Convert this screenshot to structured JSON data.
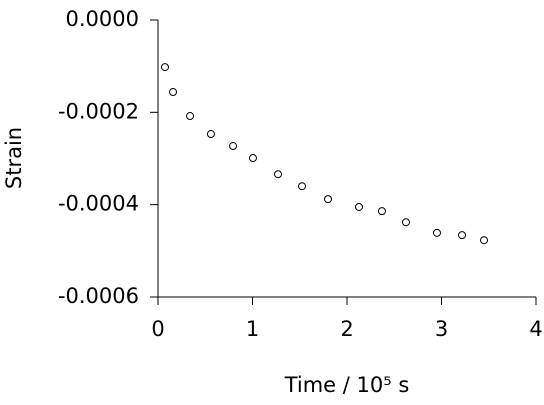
{
  "chart_data": {
    "type": "scatter",
    "xlabel": "Time / 10⁵ s",
    "ylabel": "Strain",
    "x": [
      0.074,
      0.159,
      0.339,
      0.56,
      0.794,
      1.005,
      1.27,
      1.524,
      1.799,
      2.127,
      2.37,
      2.624,
      2.952,
      3.217,
      3.45
    ],
    "values": [
      -0.000102,
      -0.000156,
      -0.000208,
      -0.000247,
      -0.000273,
      -0.000299,
      -0.000334,
      -0.00036,
      -0.000388,
      -0.000405,
      -0.000414,
      -0.000438,
      -0.000461,
      -0.000466,
      -0.000477
    ],
    "color": "#000000",
    "xlim": [
      0,
      4
    ],
    "xticks": [
      0,
      1,
      2,
      3,
      4
    ],
    "ylim": [
      -0.0006,
      0
    ],
    "yticks": [
      {
        "value": -0.0006,
        "label": "-0.0006"
      },
      {
        "value": -0.0004,
        "label": "-0.0004"
      },
      {
        "value": -0.0002,
        "label": "-0.0002"
      },
      {
        "value": 0,
        "label": "0.0000"
      }
    ]
  }
}
